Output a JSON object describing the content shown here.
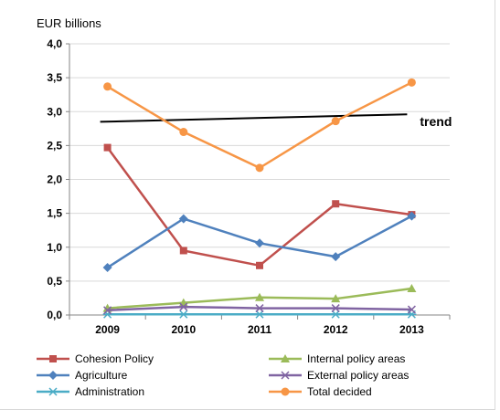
{
  "chart_data": {
    "type": "line",
    "ylabel": "EUR billions",
    "categories": [
      "2009",
      "2010",
      "2011",
      "2012",
      "2013"
    ],
    "ylim": [
      0,
      4
    ],
    "yticks": [
      "0,0",
      "0,5",
      "1,0",
      "1,5",
      "2,0",
      "2,5",
      "3,0",
      "3,5",
      "4,0"
    ],
    "ytick_values": [
      0,
      0.5,
      1,
      1.5,
      2,
      2.5,
      3,
      3.5,
      4
    ],
    "grid": true,
    "legend_position": "bottom",
    "series": [
      {
        "name": "Cohesion Policy",
        "values": [
          2.47,
          0.95,
          0.73,
          1.64,
          1.48
        ],
        "color": "#c0504d",
        "marker": "square"
      },
      {
        "name": "Agriculture",
        "values": [
          0.7,
          1.42,
          1.06,
          0.86,
          1.46
        ],
        "color": "#4f81bd",
        "marker": "diamond"
      },
      {
        "name": "Administration",
        "values": [
          0.01,
          0.01,
          0.01,
          0.01,
          0.01
        ],
        "color": "#4bacc6",
        "marker": "asterisk"
      },
      {
        "name": "Internal policy areas",
        "values": [
          0.1,
          0.18,
          0.26,
          0.24,
          0.39
        ],
        "color": "#9bbb59",
        "marker": "triangle"
      },
      {
        "name": "External policy areas",
        "values": [
          0.07,
          0.12,
          0.1,
          0.1,
          0.08
        ],
        "color": "#8064a2",
        "marker": "x"
      },
      {
        "name": "Total decided",
        "values": [
          3.37,
          2.7,
          2.17,
          2.86,
          3.43
        ],
        "color": "#f79646",
        "marker": "circle"
      }
    ],
    "trend": {
      "label": "trend",
      "values": [
        2.85,
        2.96
      ],
      "color": "#000000"
    }
  }
}
